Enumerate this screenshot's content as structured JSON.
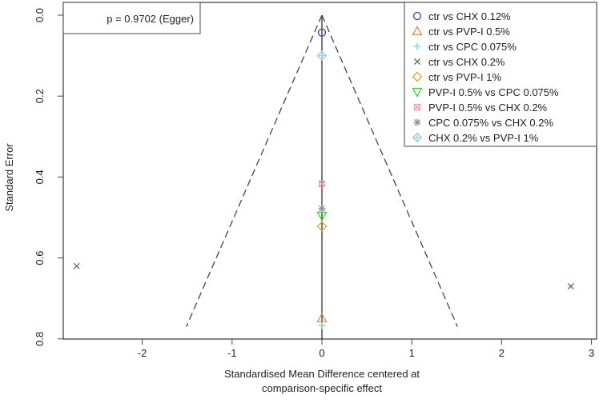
{
  "chart_data": {
    "type": "scatter",
    "subtype": "comparison-adjusted funnel plot",
    "xlabel": "Standardised Mean Difference centered at\ncomparison-specific effect",
    "xlabel_lines": [
      "Standardised Mean Difference centered at",
      "comparison-specific effect"
    ],
    "ylabel": "Standard Error",
    "xlim": [
      -2.8,
      3.05
    ],
    "ylim": [
      0.8,
      0.0
    ],
    "y_reversed": true,
    "xticks": [
      "-2",
      "-1",
      "0",
      "1",
      "2",
      "3"
    ],
    "yticks": [
      "0.0",
      "0.2",
      "0.4",
      "0.6",
      "0.8"
    ],
    "annotation": "p = 0.9702 (Egger)",
    "legend_position": "top-right",
    "funnel": {
      "center": 0,
      "z": 1.96,
      "se_max": 0.77
    },
    "series": [
      {
        "name": "ctr vs CHX 0.12%",
        "marker": "circle",
        "color": "#3b3bb0",
        "points": [
          [
            0,
            0.043
          ]
        ]
      },
      {
        "name": "ctr vs PVP-I 0.5%",
        "marker": "triangle-up",
        "color": "#d98a4a",
        "points": [
          [
            0,
            0.749
          ]
        ]
      },
      {
        "name": "ctr vs CPC 0.075%",
        "marker": "plus",
        "color": "#66d9cc",
        "points": [
          [
            0,
            0.767
          ]
        ]
      },
      {
        "name": "ctr vs CHX 0.2%",
        "marker": "x",
        "color": "#4a7a4a",
        "points": [
          [
            -2.73,
            0.62
          ],
          [
            2.77,
            0.67
          ]
        ]
      },
      {
        "name": "ctr vs PVP-I 1%",
        "marker": "diamond",
        "color": "#e0a030",
        "points": [
          [
            0,
            0.522
          ]
        ]
      },
      {
        "name": "PVP-I 0.5% vs CPC 0.075%",
        "marker": "triangle-down",
        "color": "#44cc33",
        "points": [
          [
            0,
            0.496
          ]
        ]
      },
      {
        "name": "PVP-I 0.5% vs CHX 0.2%",
        "marker": "square-x",
        "color": "#e8a0b0",
        "points": [
          [
            0,
            0.417
          ]
        ]
      },
      {
        "name": "CPC 0.075% vs CHX 0.2%",
        "marker": "asterisk",
        "color": "#9090a0",
        "points": [
          [
            0,
            0.478
          ]
        ]
      },
      {
        "name": "CHX 0.2% vs PVP-I 1%",
        "marker": "diamond-plus",
        "color": "#a0c8e8",
        "points": [
          [
            0,
            0.1
          ]
        ]
      }
    ]
  }
}
